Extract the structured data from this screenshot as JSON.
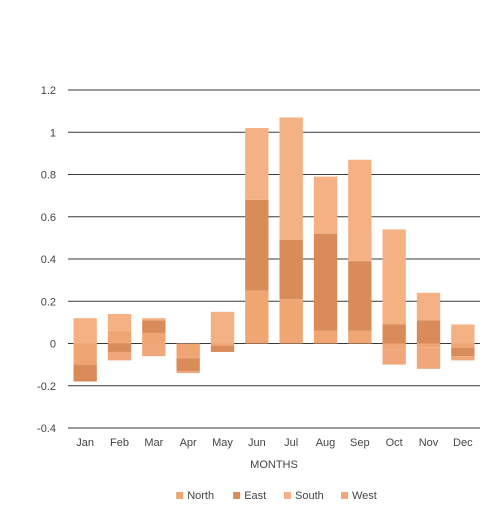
{
  "chart_data": {
    "type": "bar",
    "stacked": true,
    "categories": [
      "Jan",
      "Feb",
      "Mar",
      "Apr",
      "May",
      "Jun",
      "Jul",
      "Aug",
      "Sep",
      "Oct",
      "Nov",
      "Dec"
    ],
    "series": [
      {
        "name": "North",
        "color": "#EFA672",
        "values": [
          -0.1,
          0.06,
          0.05,
          -0.07,
          -0.01,
          0.25,
          0.21,
          0.06,
          0.06,
          -0.03,
          -0.02,
          -0.02
        ]
      },
      {
        "name": "East",
        "color": "#D98B5A",
        "values": [
          -0.08,
          -0.04,
          0.06,
          -0.06,
          -0.03,
          0.43,
          0.28,
          0.46,
          0.33,
          0.09,
          0.11,
          -0.04
        ]
      },
      {
        "name": "South",
        "color": "#F4B183",
        "values": [
          0.12,
          0.08,
          0.01,
          0.0,
          0.15,
          0.34,
          0.58,
          0.27,
          0.48,
          0.45,
          0.13,
          0.09
        ]
      },
      {
        "name": "West",
        "color": "#F0A87A",
        "values": [
          0.0,
          -0.04,
          -0.06,
          -0.01,
          0.0,
          0.0,
          0.0,
          0.0,
          0.0,
          -0.07,
          -0.1,
          -0.02
        ]
      }
    ],
    "title": "",
    "xlabel": "MONTHS",
    "ylabel": "",
    "ylim": [
      -0.4,
      1.2
    ],
    "yticks": [
      "-0.4",
      "-0.2",
      "0",
      "0.2",
      "0.4",
      "0.6",
      "0.8",
      "1",
      "1.2"
    ],
    "grid": true,
    "legend_position": "bottom"
  }
}
